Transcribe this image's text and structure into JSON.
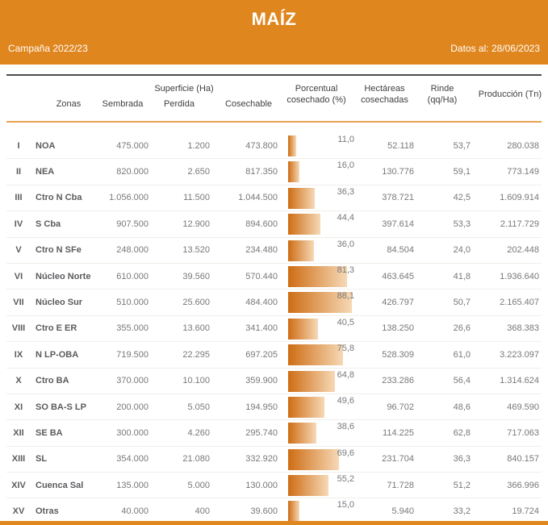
{
  "header": {
    "title": "MAÍZ",
    "campaign": "Campaña 2022/23",
    "date_label": "Datos al: 28/06/2023"
  },
  "colors": {
    "accent_orange": "#E0861E",
    "header_rule_orange": "#E9A24E",
    "bar_gradient_from": "#CE6D14",
    "bar_gradient_to": "#F6D9B6",
    "text_gray": "#77787B"
  },
  "table": {
    "group_header": "Superficie (Ha)",
    "columns": {
      "zonas": "Zonas",
      "sembrada": "Sembrada",
      "perdida": "Perdida",
      "cosechable": "Cosechable",
      "pct_line1": "Porcentual",
      "pct_line2": "cosechado (%)",
      "hect_line1": "Hectáreas",
      "hect_line2": "cosechadas",
      "rinde_line1": "Rinde",
      "rinde_line2": "(qq/Ha)",
      "produccion": "Producción (Tn)"
    },
    "rows": [
      {
        "num": "I",
        "zone": "NOA",
        "sembrada": "475.000",
        "perdida": "1.200",
        "cosechable": "473.800",
        "pct": "11,0",
        "pct_value": 11.0,
        "hectareas": "52.118",
        "rinde": "53,7",
        "produccion": "280.038"
      },
      {
        "num": "II",
        "zone": "NEA",
        "sembrada": "820.000",
        "perdida": "2.650",
        "cosechable": "817.350",
        "pct": "16,0",
        "pct_value": 16.0,
        "hectareas": "130.776",
        "rinde": "59,1",
        "produccion": "773.149"
      },
      {
        "num": "III",
        "zone": "Ctro N Cba",
        "sembrada": "1.056.000",
        "perdida": "11.500",
        "cosechable": "1.044.500",
        "pct": "36,3",
        "pct_value": 36.3,
        "hectareas": "378.721",
        "rinde": "42,5",
        "produccion": "1.609.914"
      },
      {
        "num": "IV",
        "zone": "S Cba",
        "sembrada": "907.500",
        "perdida": "12.900",
        "cosechable": "894.600",
        "pct": "44,4",
        "pct_value": 44.4,
        "hectareas": "397.614",
        "rinde": "53,3",
        "produccion": "2.117.729"
      },
      {
        "num": "V",
        "zone": "Ctro N SFe",
        "sembrada": "248.000",
        "perdida": "13.520",
        "cosechable": "234.480",
        "pct": "36,0",
        "pct_value": 36.0,
        "hectareas": "84.504",
        "rinde": "24,0",
        "produccion": "202.448"
      },
      {
        "num": "VI",
        "zone": "Núcleo Norte",
        "sembrada": "610.000",
        "perdida": "39.560",
        "cosechable": "570.440",
        "pct": "81,3",
        "pct_value": 81.3,
        "hectareas": "463.645",
        "rinde": "41,8",
        "produccion": "1.936.640"
      },
      {
        "num": "VII",
        "zone": "Núcleo Sur",
        "sembrada": "510.000",
        "perdida": "25.600",
        "cosechable": "484.400",
        "pct": "88,1",
        "pct_value": 88.1,
        "hectareas": "426.797",
        "rinde": "50,7",
        "produccion": "2.165.407"
      },
      {
        "num": "VIII",
        "zone": "Ctro E ER",
        "sembrada": "355.000",
        "perdida": "13.600",
        "cosechable": "341.400",
        "pct": "40,5",
        "pct_value": 40.5,
        "hectareas": "138.250",
        "rinde": "26,6",
        "produccion": "368.383"
      },
      {
        "num": "IX",
        "zone": "N LP-OBA",
        "sembrada": "719.500",
        "perdida": "22.295",
        "cosechable": "697.205",
        "pct": "75,8",
        "pct_value": 75.8,
        "hectareas": "528.309",
        "rinde": "61,0",
        "produccion": "3.223.097"
      },
      {
        "num": "X",
        "zone": "Ctro BA",
        "sembrada": "370.000",
        "perdida": "10.100",
        "cosechable": "359.900",
        "pct": "64,8",
        "pct_value": 64.8,
        "hectareas": "233.286",
        "rinde": "56,4",
        "produccion": "1.314.624"
      },
      {
        "num": "XI",
        "zone": "SO BA-S LP",
        "sembrada": "200.000",
        "perdida": "5.050",
        "cosechable": "194.950",
        "pct": "49,6",
        "pct_value": 49.6,
        "hectareas": "96.702",
        "rinde": "48,6",
        "produccion": "469.590"
      },
      {
        "num": "XII",
        "zone": "SE BA",
        "sembrada": "300.000",
        "perdida": "4.260",
        "cosechable": "295.740",
        "pct": "38,6",
        "pct_value": 38.6,
        "hectareas": "114.225",
        "rinde": "62,8",
        "produccion": "717.063"
      },
      {
        "num": "XIII",
        "zone": "SL",
        "sembrada": "354.000",
        "perdida": "21.080",
        "cosechable": "332.920",
        "pct": "69,6",
        "pct_value": 69.6,
        "hectareas": "231.704",
        "rinde": "36,3",
        "produccion": "840.157"
      },
      {
        "num": "XIV",
        "zone": "Cuenca Sal",
        "sembrada": "135.000",
        "perdida": "5.000",
        "cosechable": "130.000",
        "pct": "55,2",
        "pct_value": 55.2,
        "hectareas": "71.728",
        "rinde": "51,2",
        "produccion": "366.996"
      },
      {
        "num": "XV",
        "zone": "Otras",
        "sembrada": "40.000",
        "perdida": "400",
        "cosechable": "39.600",
        "pct": "15,0",
        "pct_value": 15.0,
        "hectareas": "5.940",
        "rinde": "33,2",
        "produccion": "19.724"
      }
    ]
  },
  "chart_data": {
    "type": "bar",
    "orientation": "horizontal",
    "title": "Porcentual cosechado (%)",
    "categories": [
      "NOA",
      "NEA",
      "Ctro N Cba",
      "S Cba",
      "Ctro N SFe",
      "Núcleo Norte",
      "Núcleo Sur",
      "Ctro E ER",
      "N LP-OBA",
      "Ctro BA",
      "SO BA-S LP",
      "SE BA",
      "SL",
      "Cuenca Sal",
      "Otras"
    ],
    "values": [
      11.0,
      16.0,
      36.3,
      44.4,
      36.0,
      81.3,
      88.1,
      40.5,
      75.8,
      64.8,
      49.6,
      38.6,
      69.6,
      55.2,
      15.0
    ],
    "xlim": [
      0,
      100
    ]
  }
}
